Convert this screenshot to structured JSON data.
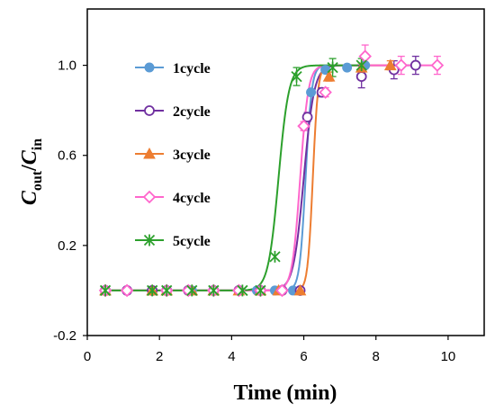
{
  "chart_data": {
    "type": "line",
    "xlabel": "Time (min)",
    "ylabel": {
      "main": "C",
      "sub_top": "out",
      "sep": "/",
      "main2": "C",
      "sub_bottom": "in"
    },
    "xlim": [
      0,
      11
    ],
    "ylim": [
      -0.2,
      1.25
    ],
    "xticks": [
      0,
      2,
      4,
      6,
      8,
      10
    ],
    "yticks": [
      -0.2,
      0.2,
      0.6,
      1.0
    ],
    "ytick_labels": [
      "-0.2",
      "0.2",
      "0.6",
      "1.0"
    ],
    "grid": false,
    "legend_position": "left",
    "series": [
      {
        "name": "1cycle",
        "color": "#5b9bd5",
        "marker": "circle-filled",
        "x": [
          0.5,
          1.1,
          1.8,
          2.2,
          2.9,
          3.5,
          4.2,
          4.7,
          5.2,
          5.7,
          6.2,
          6.6,
          7.2,
          7.7
        ],
        "y": [
          0,
          0,
          0,
          0,
          0,
          0,
          0,
          0,
          0,
          0,
          0.88,
          0.98,
          0.99,
          1.0
        ],
        "err": [
          0,
          0,
          0,
          0,
          0,
          0,
          0,
          0,
          0,
          0,
          0.01,
          0.01,
          0.01,
          0.01
        ],
        "curve": {
          "x0": 6.05,
          "k": 12
        }
      },
      {
        "name": "2cycle",
        "color": "#7030a0",
        "marker": "circle-open",
        "x": [
          0.5,
          1.1,
          1.8,
          2.2,
          2.8,
          3.5,
          4.2,
          4.8,
          5.4,
          5.9,
          6.1,
          6.5,
          7.6,
          8.5,
          9.1
        ],
        "y": [
          0,
          0,
          0,
          0,
          0,
          0,
          0,
          0,
          0,
          0,
          0.77,
          0.88,
          0.95,
          0.98,
          1.0
        ],
        "err": [
          0,
          0,
          0,
          0,
          0,
          0,
          0,
          0,
          0,
          0,
          0.02,
          0.02,
          0.05,
          0.04,
          0.04
        ],
        "curve": {
          "x0": 6.0,
          "k": 7
        }
      },
      {
        "name": "3cycle",
        "color": "#ed7d31",
        "marker": "triangle-filled",
        "x": [
          0.5,
          1.8,
          2.2,
          2.9,
          3.5,
          4.2,
          4.8,
          5.3,
          5.9,
          6.7,
          7.6,
          8.4
        ],
        "y": [
          0,
          0,
          0,
          0,
          0,
          0,
          0,
          0,
          0,
          0.95,
          0.99,
          1.0
        ],
        "err": [
          0,
          0,
          0,
          0,
          0,
          0,
          0,
          0,
          0,
          0.02,
          0.02,
          0.02
        ],
        "curve": {
          "x0": 6.25,
          "k": 14
        }
      },
      {
        "name": "4cycle",
        "color": "#ff66cc",
        "marker": "diamond-open",
        "x": [
          0.5,
          1.1,
          2.2,
          2.8,
          3.5,
          4.2,
          4.8,
          5.4,
          6.0,
          6.6,
          7.7,
          8.7,
          9.7
        ],
        "y": [
          0,
          0,
          0,
          0,
          0,
          0,
          0,
          0,
          0.73,
          0.88,
          1.04,
          1.0,
          1.0
        ],
        "err": [
          0,
          0,
          0,
          0,
          0,
          0,
          0,
          0,
          0.02,
          0.02,
          0.05,
          0.04,
          0.04
        ],
        "curve": {
          "x0": 5.9,
          "k": 9
        }
      },
      {
        "name": "5cycle",
        "color": "#2ca02c",
        "marker": "asterisk",
        "x": [
          0.5,
          1.8,
          2.2,
          2.9,
          3.5,
          4.3,
          4.8,
          5.2,
          5.8,
          6.8,
          7.6
        ],
        "y": [
          0,
          0,
          0,
          0,
          0,
          0,
          0,
          0.15,
          0.95,
          0.99,
          1.0
        ],
        "err": [
          0,
          0,
          0,
          0,
          0,
          0,
          0,
          0,
          0.04,
          0.04,
          0.03
        ],
        "curve": {
          "x0": 5.3,
          "k": 7
        }
      }
    ]
  }
}
